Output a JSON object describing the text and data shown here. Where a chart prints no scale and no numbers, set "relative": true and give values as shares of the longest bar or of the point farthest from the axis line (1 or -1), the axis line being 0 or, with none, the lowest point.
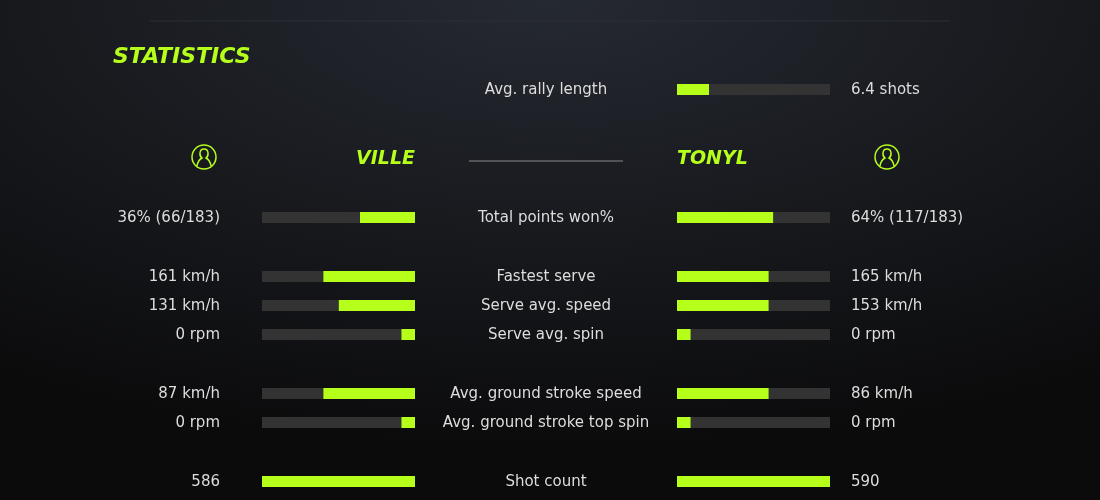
{
  "chart_data": [
    {
      "type": "bar",
      "orientation": "horizontal",
      "relative": true,
      "stacked": true,
      "tick_labels": "y",
      "categories": [
        "Avg. rally length"
      ],
      "series": [
        {
          "color": "#b5ff1a",
          "values": [
            0.21
          ]
        },
        {
          "color": "#333333",
          "values": [
            0.79
          ]
        }
      ],
      "annotations": [
        "6.4 shots"
      ]
    },
    {
      "type": "bar",
      "title": "STATISTICS",
      "orientation": "horizontal",
      "relative": true,
      "stacked": true,
      "tick_labels": false,
      "categories": [
        null,
        null,
        null,
        null,
        null,
        null,
        null
      ],
      "series": [
        {
          "name": "VILLE",
          "color": "#b5ff1a",
          "values": [
            -0.36,
            -0.6,
            -0.5,
            -0.09,
            -0.6,
            -0.09,
            -1
          ]
        },
        {
          "color": "#333333",
          "values": [
            -0.64,
            -0.4,
            -0.5,
            -0.91,
            -0.4,
            -0.91,
            0
          ]
        }
      ],
      "annotations": [
        "36% (66/183)",
        "161 km/h",
        "131 km/h",
        "0 rpm",
        "87 km/h",
        "0 rpm",
        "586"
      ]
    },
    {
      "type": "bar",
      "orientation": "horizontal",
      "relative": true,
      "stacked": true,
      "tick_labels": "y",
      "categories": [
        "Total points won%",
        "Fastest serve",
        "Serve avg. speed",
        "Serve avg. spin",
        "Avg. ground stroke speed",
        "Avg. ground stroke top spin",
        "Shot count"
      ],
      "series": [
        {
          "name": "TONYL",
          "color": "#b5ff1a",
          "values": [
            0.63,
            0.6,
            0.6,
            0.09,
            0.6,
            0.09,
            1
          ]
        },
        {
          "color": "#333333",
          "values": [
            0.37,
            0.4,
            0.4,
            0.91,
            0.4,
            0.91,
            0
          ]
        }
      ],
      "annotations": [
        "64% (117/183)",
        "165 km/h",
        "153 km/h",
        "0 rpm",
        "86 km/h",
        "0 rpm",
        "590"
      ]
    }
  ]
}
